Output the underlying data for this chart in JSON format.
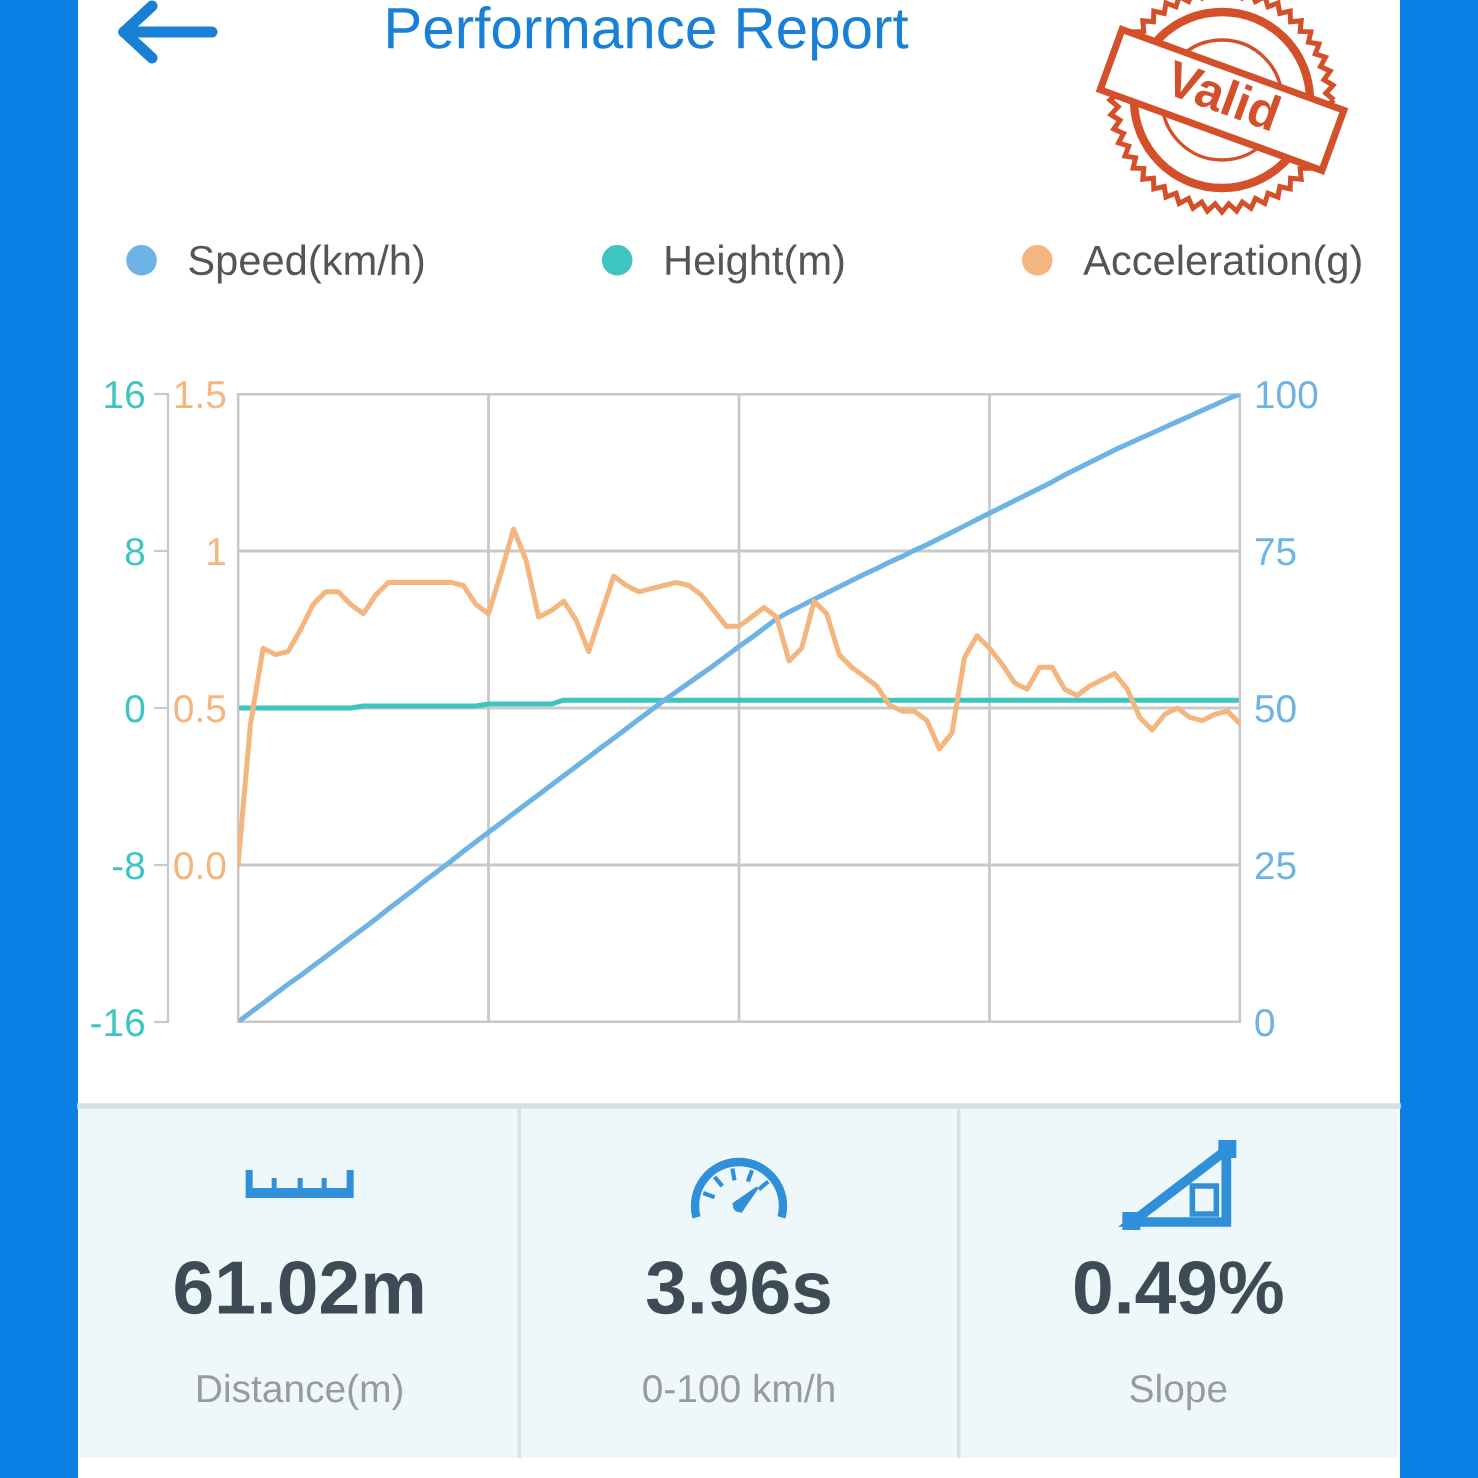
{
  "chart_data": [
    {
      "type": "line",
      "title": "Performance Report",
      "categories": [
        null,
        null,
        null,
        null,
        null,
        null,
        null,
        null,
        null,
        null,
        null,
        null,
        null,
        null,
        null,
        null,
        null,
        null,
        null,
        null,
        null,
        null,
        null,
        null,
        null,
        null,
        null,
        null,
        null,
        null,
        null,
        null,
        null,
        null,
        null,
        null,
        null,
        null,
        null,
        null,
        null,
        null,
        null,
        null,
        null,
        null,
        null,
        null,
        null,
        null,
        null,
        null,
        null,
        null,
        null,
        null,
        null,
        null,
        null,
        null,
        null,
        null,
        null,
        null,
        null,
        null,
        null,
        null,
        null,
        null,
        null,
        null,
        null,
        null,
        null,
        null,
        null,
        null,
        null,
        null,
        null
      ],
      "series": [
        {
          "name": "Speed(km/h)",
          "color": "#6db3e6",
          "axis": "y2",
          "values": [
            0,
            1.5,
            3.0,
            4.5,
            6.0,
            7.4,
            8.9,
            10.4,
            11.9,
            13.4,
            14.9,
            16.4,
            18.0,
            19.5,
            21.0,
            22.6,
            24.1,
            25.6,
            27.2,
            28.7,
            30.2,
            31.7,
            33.2,
            34.7,
            36.2,
            37.7,
            39.2,
            40.7,
            42.2,
            43.7,
            45.2,
            46.7,
            48.2,
            49.7,
            51.2,
            52.6,
            54.0,
            55.4,
            56.8,
            58.3,
            59.8,
            61.2,
            62.7,
            64.2,
            65.3,
            66.3,
            67.3,
            68.3,
            69.3,
            70.3,
            71.3,
            72.2,
            73.2,
            74.1,
            75.1,
            76.0,
            77.0,
            78.0,
            79.0,
            80.0,
            81.0,
            82.0,
            83.0,
            84.0,
            85.0,
            86.0,
            87.1,
            88.1,
            89.1,
            90.1,
            91.1,
            92.0,
            92.9,
            93.8,
            94.7,
            95.6,
            96.5,
            97.4,
            98.3,
            99.2,
            100
          ]
        },
        {
          "name": "Height(m)",
          "color": "#3ec5c1",
          "axis": "y",
          "values": [
            0,
            0,
            0,
            0,
            0,
            0,
            0,
            0,
            0,
            0,
            0.1,
            0.1,
            0.1,
            0.1,
            0.1,
            0.1,
            0.1,
            0.1,
            0.1,
            0.1,
            0.2,
            0.2,
            0.2,
            0.2,
            0.2,
            0.2,
            0.4,
            0.4,
            0.4,
            0.4,
            0.4,
            0.4,
            0.4,
            0.4,
            0.4,
            0.4,
            0.4,
            0.4,
            0.4,
            0.4,
            0.4,
            0.4,
            0.4,
            0.4,
            0.4,
            0.4,
            0.4,
            0.4,
            0.4,
            0.4,
            0.4,
            0.4,
            0.4,
            0.4,
            0.4,
            0.4,
            0.4,
            0.4,
            0.4,
            0.4,
            0.4,
            0.4,
            0.4,
            0.4,
            0.4,
            0.4,
            0.4,
            0.4,
            0.4,
            0.4,
            0.4,
            0.4,
            0.4,
            0.4,
            0.4,
            0.4,
            0.4,
            0.4,
            0.4,
            0.4,
            0.4
          ]
        },
        {
          "name": "Acceleration(g)",
          "color": "#f5b57f",
          "axis": "y3",
          "values": [
            0.0,
            0.45,
            0.69,
            0.67,
            0.68,
            0.75,
            0.83,
            0.87,
            0.87,
            0.83,
            0.8,
            0.86,
            0.9,
            0.9,
            0.9,
            0.9,
            0.9,
            0.9,
            0.89,
            0.83,
            0.8,
            0.93,
            1.07,
            0.97,
            0.79,
            0.81,
            0.84,
            0.78,
            0.68,
            0.8,
            0.92,
            0.89,
            0.87,
            0.88,
            0.89,
            0.9,
            0.89,
            0.86,
            0.81,
            0.76,
            0.76,
            0.79,
            0.82,
            0.79,
            0.65,
            0.69,
            0.84,
            0.8,
            0.67,
            0.63,
            0.6,
            0.57,
            0.51,
            0.49,
            0.49,
            0.46,
            0.37,
            0.42,
            0.66,
            0.73,
            0.69,
            0.64,
            0.58,
            0.56,
            0.63,
            0.63,
            0.56,
            0.54,
            0.57,
            0.59,
            0.61,
            0.56,
            0.47,
            0.43,
            0.48,
            0.5,
            0.47,
            0.46,
            0.48,
            0.49,
            0.45
          ]
        }
      ],
      "ylim": [
        -16,
        16
      ],
      "yticks": [
        -16,
        -8,
        0,
        8,
        16
      ],
      "y2lim": [
        0,
        100
      ],
      "y2ticks": [
        0,
        25,
        50,
        75,
        100
      ],
      "y3lim": [
        -0.5,
        1.5
      ],
      "y3ticks": [
        {
          "value": 0,
          "label": "0.0"
        },
        0.5,
        1,
        1.5
      ],
      "grid": true,
      "legend": "top",
      "annotations": [
        "Valid"
      ]
    },
    {
      "type": "other",
      "annotations": [
        "61.02m",
        "Distance(m)",
        "3.96s",
        "0-100 km/h",
        "0.49%",
        "Slope"
      ]
    }
  ]
}
